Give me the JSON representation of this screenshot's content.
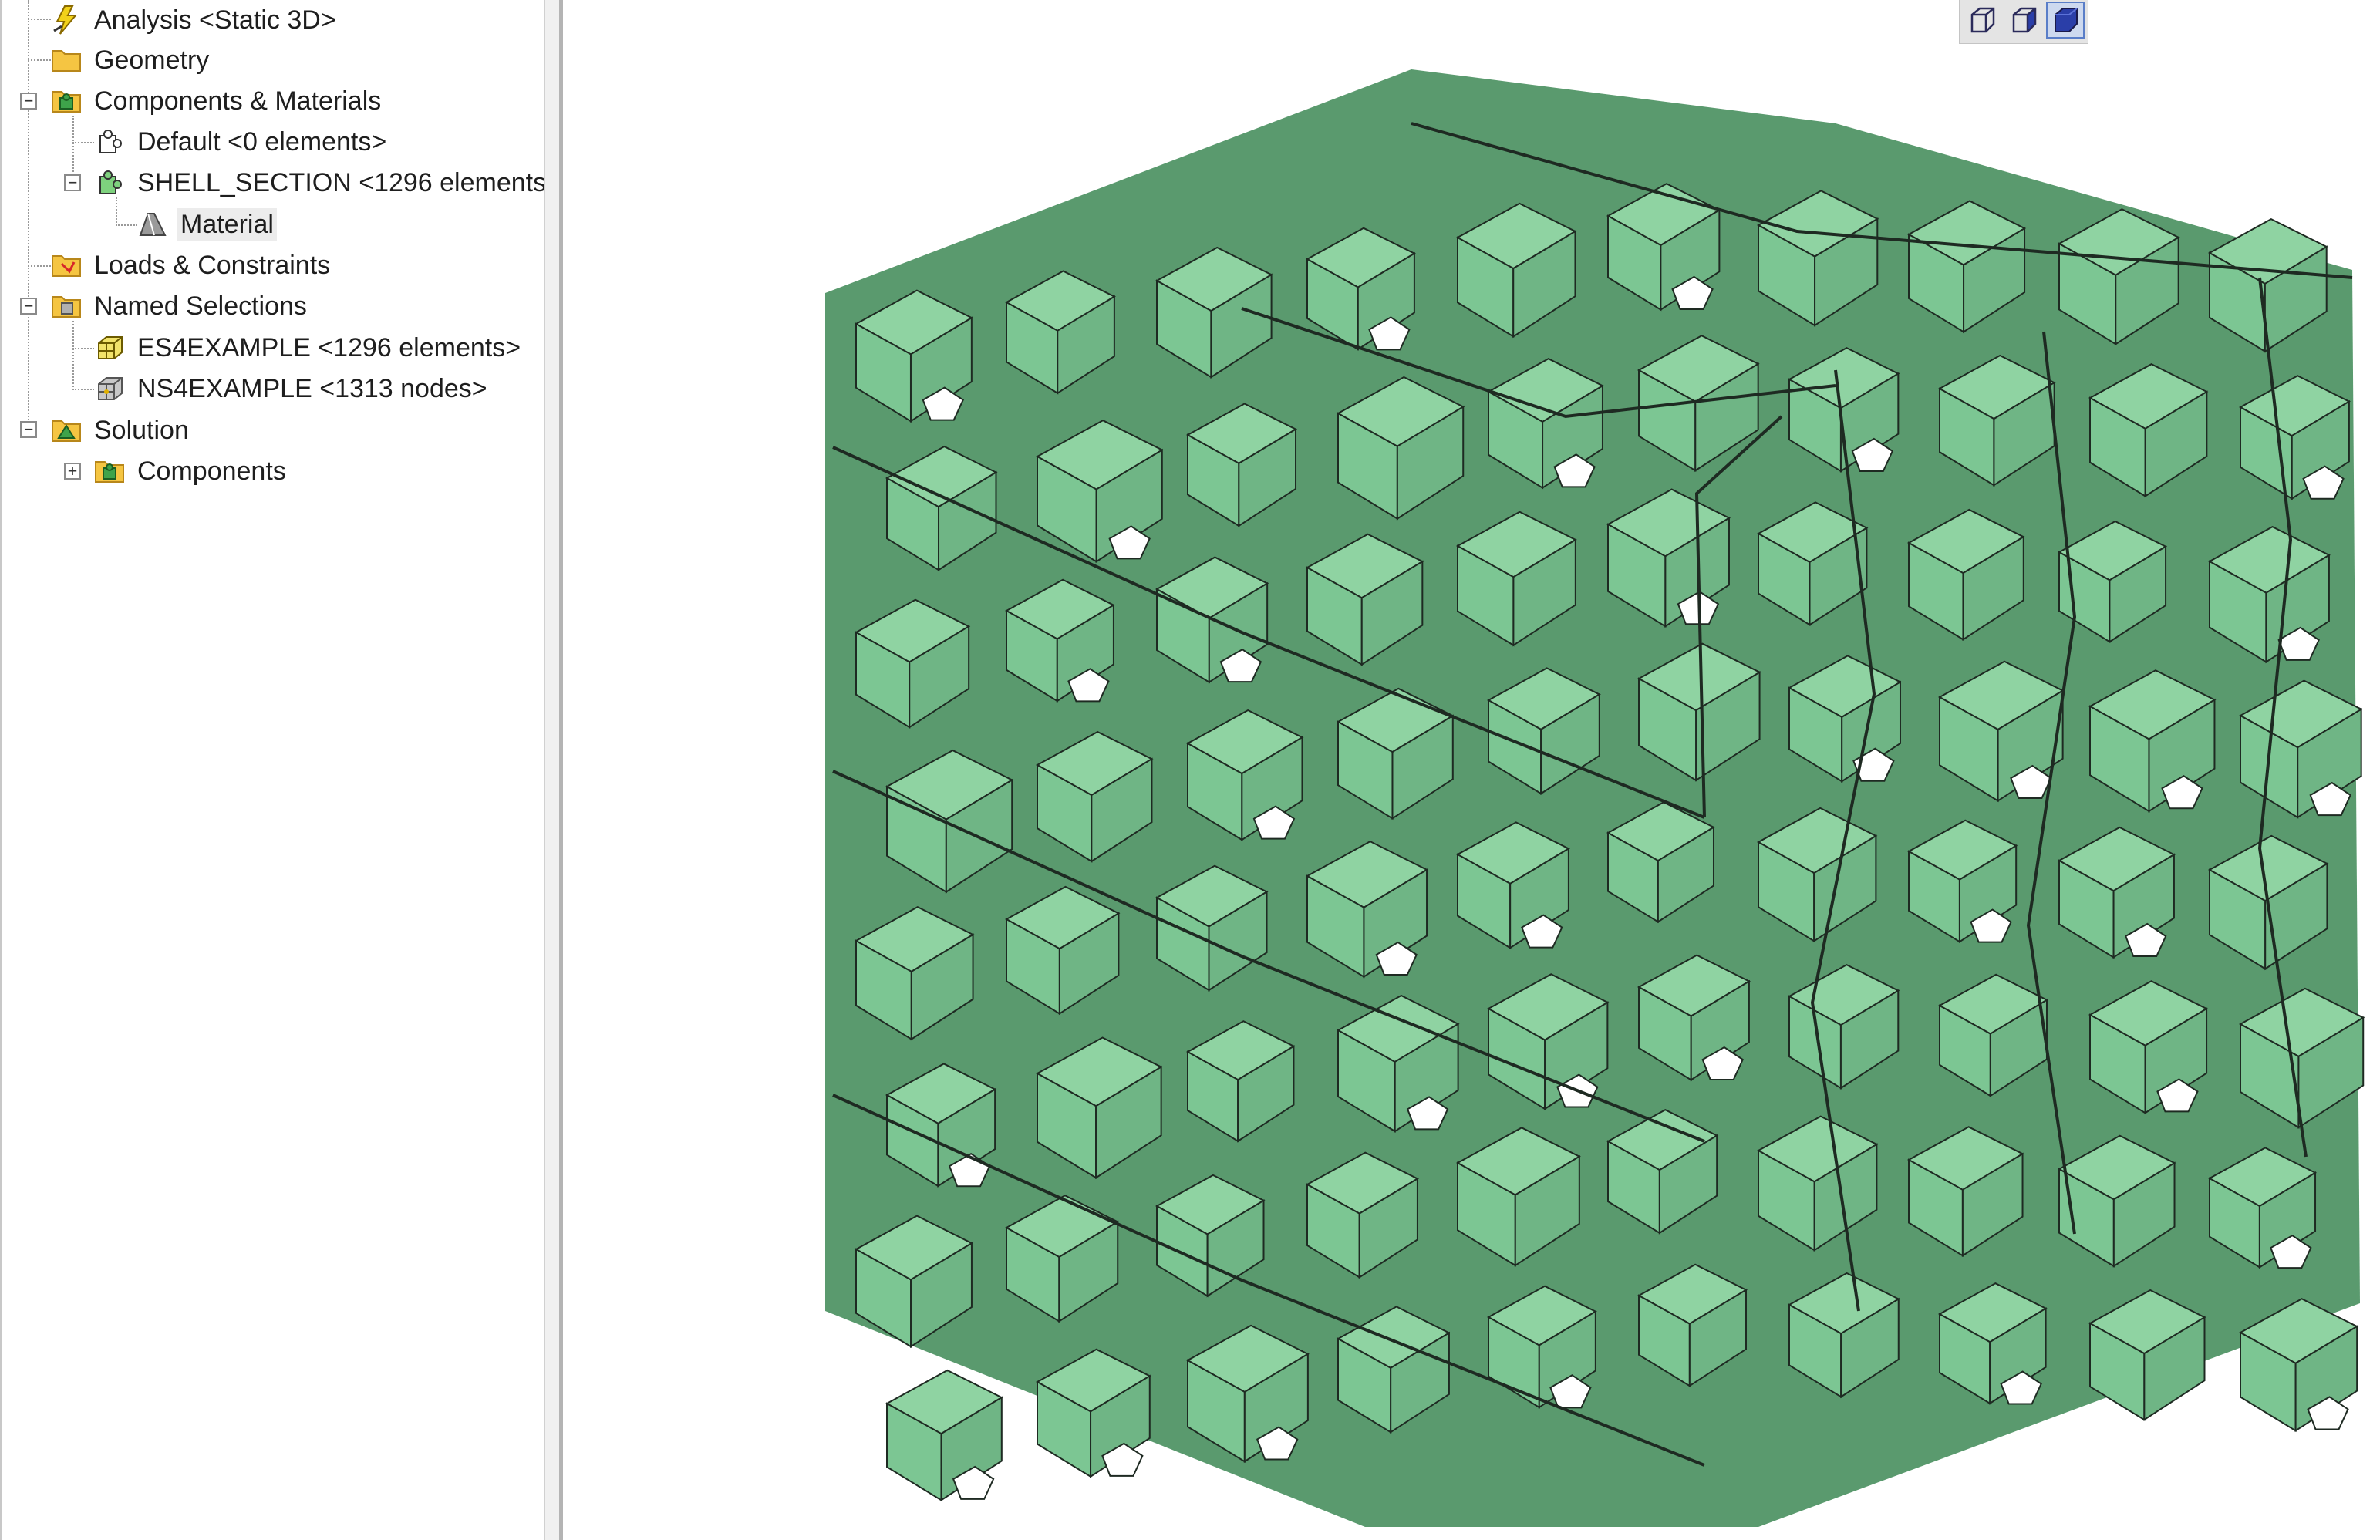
{
  "tree": {
    "items": [
      {
        "label": "Analysis <Static 3D>",
        "icon": "lightning-icon"
      },
      {
        "label": "Geometry",
        "icon": "folder-icon"
      },
      {
        "label": "Components & Materials",
        "icon": "components-icon"
      },
      {
        "label": "Default <0 elements>",
        "icon": "component-outline-icon"
      },
      {
        "label": "SHELL_SECTION <1296 elements",
        "icon": "component-green-icon"
      },
      {
        "label": "Material",
        "icon": "material-icon"
      },
      {
        "label": "Loads & Constraints",
        "icon": "loads-icon"
      },
      {
        "label": "Named Selections",
        "icon": "named-selections-icon"
      },
      {
        "label": "ES4EXAMPLE <1296 elements>",
        "icon": "element-set-icon"
      },
      {
        "label": "NS4EXAMPLE <1313 nodes>",
        "icon": "node-set-icon"
      },
      {
        "label": "Solution",
        "icon": "solution-icon"
      },
      {
        "label": "Components",
        "icon": "components-icon"
      }
    ]
  },
  "view_toolbar": {
    "buttons": [
      {
        "name": "wireframe-view",
        "icon": "wireframe-cube-icon"
      },
      {
        "name": "shaded-edges-view",
        "icon": "shaded-edges-cube-icon"
      },
      {
        "name": "shaded-view",
        "icon": "shaded-cube-icon",
        "active": true
      }
    ]
  },
  "model": {
    "description_color_light": "#8fd3a2",
    "color_base": "#7cc693",
    "color_shadow": "#5a9a6e",
    "color_edge": "#1e2a22"
  }
}
